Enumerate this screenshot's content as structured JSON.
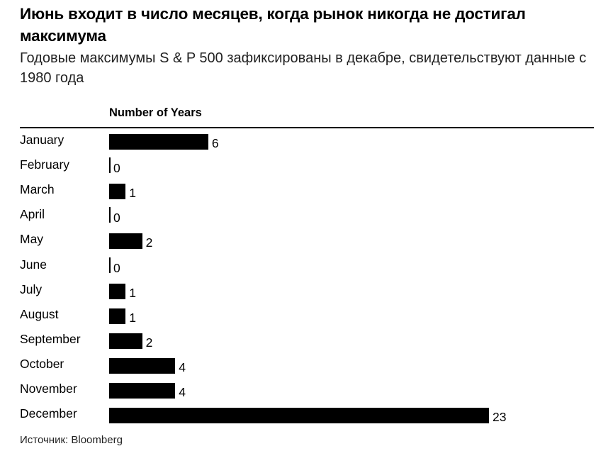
{
  "title": "Июнь входит в число месяцев, когда рынок никогда не достигал максимума",
  "subtitle": "Годовые максимумы S & P 500 зафиксированы в декабре, свидетельствуют данные с 1980 года",
  "column_header": "Number of Years",
  "source": "Источник: Bloomberg",
  "bar_color": "#000000",
  "chart_data": {
    "type": "bar",
    "orientation": "horizontal",
    "title": "Июнь входит в число месяцев, когда рынок никогда не достигал максимума",
    "subtitle": "Годовые максимумы S & P 500 зафиксированы в декабре, свидетельствуют данные с 1980 года",
    "xlabel": "Number of Years",
    "ylabel": "",
    "categories": [
      "January",
      "February",
      "March",
      "April",
      "May",
      "June",
      "July",
      "August",
      "September",
      "October",
      "November",
      "December"
    ],
    "values": [
      6,
      0,
      1,
      0,
      2,
      0,
      1,
      1,
      2,
      4,
      4,
      23
    ],
    "xlim": [
      0,
      23
    ],
    "grid": false,
    "legend": "none",
    "data_labels": true,
    "source": "Источник: Bloomberg"
  },
  "rows": [
    {
      "label": "January",
      "value": "6"
    },
    {
      "label": "February",
      "value": "0"
    },
    {
      "label": "March",
      "value": "1"
    },
    {
      "label": "April",
      "value": "0"
    },
    {
      "label": "May",
      "value": "2"
    },
    {
      "label": "June",
      "value": "0"
    },
    {
      "label": "July",
      "value": "1"
    },
    {
      "label": "August",
      "value": "1"
    },
    {
      "label": "September",
      "value": "2"
    },
    {
      "label": "October",
      "value": "4"
    },
    {
      "label": "November",
      "value": "4"
    },
    {
      "label": "December",
      "value": "23"
    }
  ]
}
